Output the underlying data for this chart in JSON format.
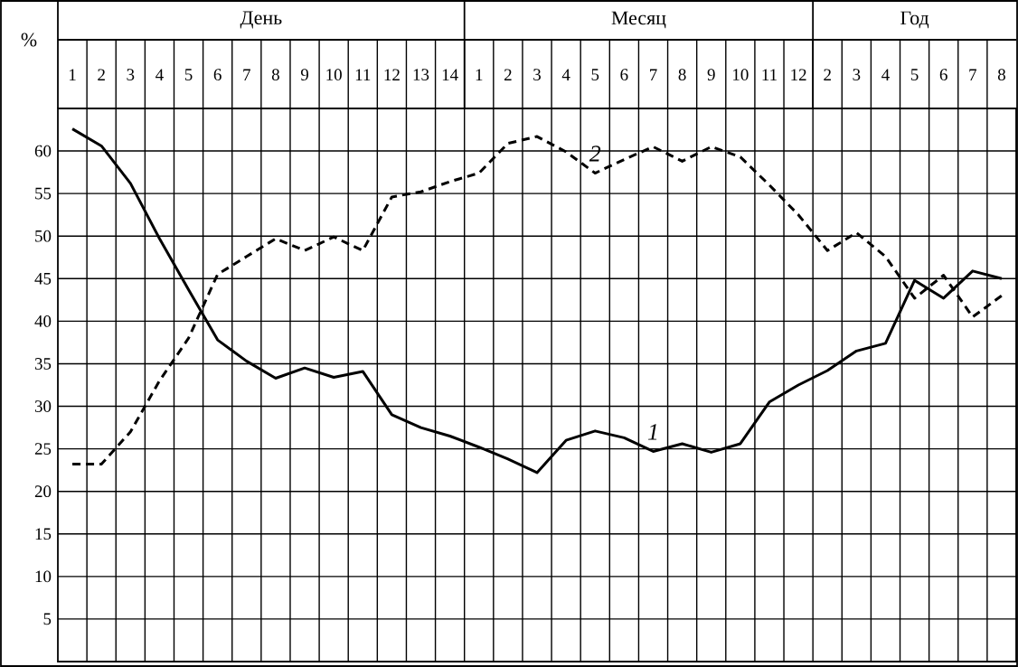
{
  "chart_data": {
    "type": "line",
    "ylabel": "%",
    "annotations": [
      "День",
      "Месяц",
      "Год"
    ],
    "categories": [
      "1",
      "2",
      "3",
      "4",
      "5",
      "6",
      "7",
      "8",
      "9",
      "10",
      "11",
      "12",
      "13",
      "14",
      "1",
      "2",
      "3",
      "4",
      "5",
      "6",
      "7",
      "8",
      "9",
      "10",
      "11",
      "12",
      "2",
      "3",
      "4",
      "5",
      "6",
      "7",
      "8"
    ],
    "series": [
      {
        "name": "1",
        "color": "#000000",
        "line_style": "solid",
        "values": [
          62.6,
          60.6,
          56.2,
          49.7,
          43.7,
          37.8,
          35.3,
          33.3,
          34.5,
          33.4,
          34.1,
          29,
          27.5,
          26.5,
          25.2,
          23.8,
          22.2,
          26,
          27.1,
          26.3,
          24.7,
          25.6,
          24.6,
          25.6,
          30.5,
          32.5,
          34.2,
          36.5,
          37.4,
          44.8,
          42.7,
          45.9,
          45
        ]
      },
      {
        "name": "2",
        "color": "#000000",
        "line_style": "dashed",
        "values": [
          23.2,
          23.2,
          27,
          33,
          38,
          45.5,
          47.6,
          49.7,
          48.3,
          49.9,
          48.3,
          54.6,
          55.2,
          56.4,
          57.4,
          60.9,
          61.7,
          59.9,
          57.4,
          59,
          60.5,
          58.8,
          60.5,
          59.3,
          56,
          52.5,
          48.3,
          50.4,
          47.6,
          42.7,
          45.4,
          40.5,
          43
        ]
      }
    ],
    "ylim": [
      0,
      65
    ],
    "yticks": [
      5,
      10,
      15,
      20,
      25,
      30,
      35,
      40,
      45,
      50,
      55,
      60
    ],
    "grid": true
  }
}
